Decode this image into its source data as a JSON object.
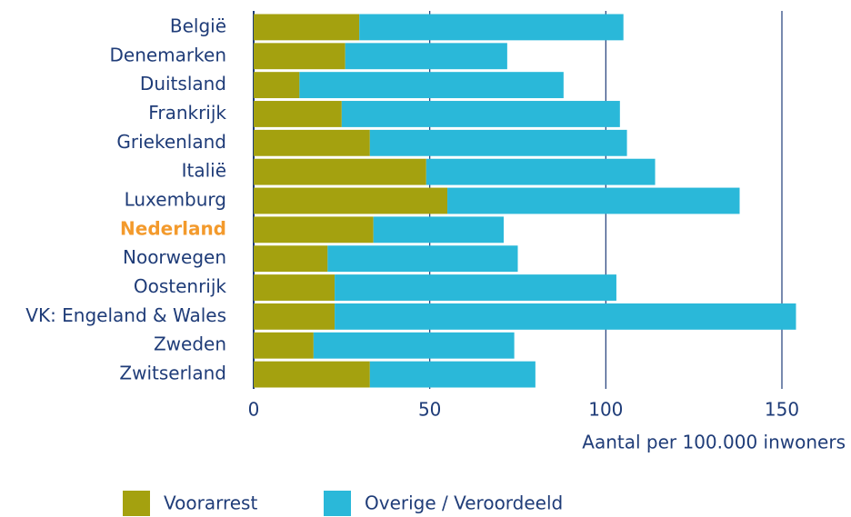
{
  "chart_data": {
    "type": "barh_stacked",
    "categories": [
      "België",
      "Denemarken",
      "Duitsland",
      "Frankrijk",
      "Griekenland",
      "Italië",
      "Luxemburg",
      "Nederland",
      "Noorwegen",
      "Oostenrijk",
      "VK: Engeland & Wales",
      "Zweden",
      "Zwitserland"
    ],
    "series": [
      {
        "name": "Voorarrest",
        "color": "#a4a10f",
        "values": [
          30,
          26,
          13,
          25,
          33,
          49,
          55,
          34,
          21,
          23,
          23,
          17,
          33
        ]
      },
      {
        "name": "Overige / Veroordeeld",
        "color": "#2ab8d9",
        "values": [
          75,
          46,
          75,
          79,
          73,
          65,
          83,
          37,
          54,
          80,
          131,
          57,
          47
        ]
      }
    ],
    "xlim": [
      0,
      150
    ],
    "xticks": [
      0,
      50,
      100,
      150
    ],
    "x_label": "Aantal per 100.000 inwoners",
    "grid": true,
    "legend": "bottom-left",
    "highlight": "Nederland",
    "highlight_color": "#f39a2c"
  }
}
